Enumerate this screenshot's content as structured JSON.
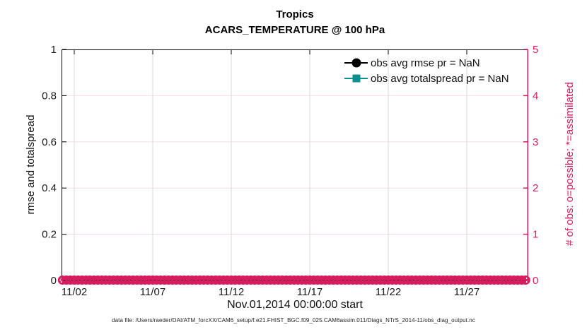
{
  "title": {
    "line1": "Tropics",
    "line2": "ACARS_TEMPERATURE @ 100 hPa"
  },
  "legend": {
    "items": [
      {
        "label": "obs avg rmse pr = NaN",
        "color": "#000000",
        "marker": "circle"
      },
      {
        "label": "obs avg totalspread pr = NaN",
        "color": "#0d8f8f",
        "marker": "square"
      }
    ],
    "position": "upper right, no box"
  },
  "caption": "data file: /Users/raeder/DAI/ATM_forcXX/CAM6_setup/f.e21.FHIST_BGC.f09_025.CAM6assim.011/Diags_NTrS_2014-11/obs_diag_output.nc",
  "colors": {
    "accent_pink": "#d81b5e",
    "teal": "#0d8f8f",
    "grid_vertical": "#d8d8dc",
    "grid_horizontal": "#f8dce8",
    "axis_black": "#000000",
    "tick_text": "#1a1a1a"
  },
  "chart_data": {
    "type": "line",
    "title": "Tropics",
    "subtitle": "ACARS_TEMPERATURE @ 100 hPa",
    "xlabel": "Nov.01,2014 00:00:00 start",
    "ylabel_left": "rmse and totalspread",
    "ylabel_right": "# of obs: o=possible; *=assimilated",
    "x_ticks": [
      {
        "day": 2,
        "label": "11/02"
      },
      {
        "day": 7,
        "label": "11/07"
      },
      {
        "day": 12,
        "label": "11/12"
      },
      {
        "day": 17,
        "label": "11/17"
      },
      {
        "day": 22,
        "label": "11/22"
      },
      {
        "day": 27,
        "label": "11/27"
      }
    ],
    "x_range_days": [
      1.19,
      30.92
    ],
    "ylim_left": [
      0,
      1
    ],
    "yticks_left": [
      {
        "value": 0,
        "label": "0"
      },
      {
        "value": 0.2,
        "label": "0.2"
      },
      {
        "value": 0.4,
        "label": "0.4"
      },
      {
        "value": 0.6,
        "label": "0.6"
      },
      {
        "value": 0.8,
        "label": "0.8"
      },
      {
        "value": 1,
        "label": "1"
      }
    ],
    "ylim_right": [
      0,
      5
    ],
    "yticks_right": [
      {
        "value": 0,
        "label": "0"
      },
      {
        "value": 1,
        "label": "1"
      },
      {
        "value": 2,
        "label": "2"
      },
      {
        "value": 3,
        "label": "3"
      },
      {
        "value": 4,
        "label": "4"
      },
      {
        "value": 5,
        "label": "5"
      }
    ],
    "grid": true,
    "series": [
      {
        "name": "obs avg rmse pr = NaN",
        "color": "#000000",
        "marker": "circle",
        "pr": "NaN",
        "points": []
      },
      {
        "name": "obs avg totalspread pr = NaN",
        "color": "#0d8f8f",
        "marker": "square",
        "pr": "NaN",
        "points": []
      }
    ],
    "obs_markers": {
      "description": "possible (o) and assimilated (*) obs counts, all at 0 on right axis",
      "color": "#d81b5e",
      "value": 0,
      "start_day": 1.25,
      "end_day": 30.75,
      "step_days": 0.25
    }
  }
}
